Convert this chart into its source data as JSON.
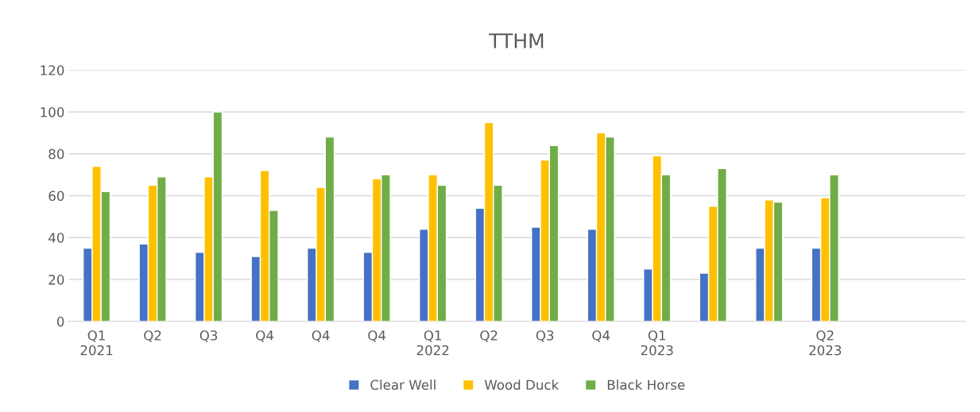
{
  "chart_data": {
    "type": "bar",
    "title": "TTHM",
    "categories": [
      "Q1\n2021",
      "Q2",
      "Q3",
      "Q4",
      "Q4",
      "Q4",
      "Q1\n2022",
      "Q2",
      "Q3",
      "Q4",
      "Q1\n2023",
      null,
      null,
      "Q2\n2023",
      null,
      null
    ],
    "series": [
      {
        "name": "Clear Well",
        "color": "#4472c4",
        "values": [
          35,
          37,
          33,
          31,
          35,
          33,
          44,
          54,
          45,
          44,
          25,
          23,
          35,
          35,
          null,
          null
        ]
      },
      {
        "name": "Wood Duck",
        "color": "#ffc000",
        "values": [
          74,
          65,
          69,
          72,
          64,
          68,
          70,
          95,
          77,
          90,
          79,
          55,
          58,
          59,
          null,
          null
        ]
      },
      {
        "name": "Black Horse",
        "color": "#70ad47",
        "values": [
          62,
          69,
          100,
          53,
          88,
          70,
          65,
          65,
          84,
          88,
          70,
          73,
          57,
          70,
          null,
          null
        ]
      }
    ],
    "ylim": [
      0,
      120
    ],
    "yticks": [
      0,
      20,
      40,
      60,
      80,
      100,
      120
    ],
    "grid": "y",
    "legend": "bottom"
  }
}
